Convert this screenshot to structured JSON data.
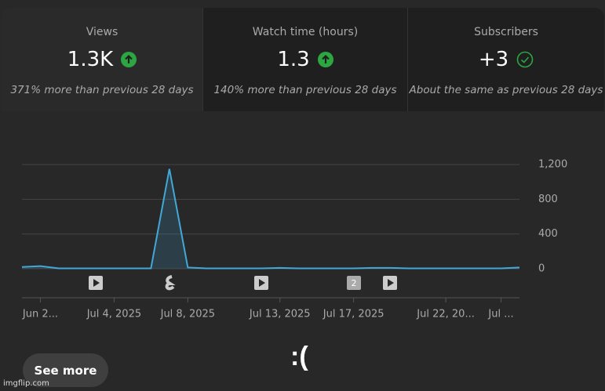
{
  "cards": [
    {
      "title": "Views",
      "value": "1.3K",
      "comparison": "371% more than previous 28 days"
    },
    {
      "title": "Watch time (hours)",
      "value": "1.3",
      "comparison": "140% more than previous 28 days"
    },
    {
      "title": "Subscribers",
      "value": "+3",
      "comparison": "About the same as previous 28 days"
    }
  ],
  "chart_data": {
    "type": "line",
    "categories": [
      null,
      "Jun 2...",
      null,
      null,
      null,
      "Jul 4, 2025",
      null,
      null,
      null,
      "Jul 8, 2025",
      null,
      null,
      null,
      null,
      "Jul 13, 2025",
      null,
      null,
      null,
      "Jul 17, 2025",
      null,
      null,
      null,
      null,
      "Jul 22, 20...",
      null,
      null,
      "Jul ...",
      null
    ],
    "values": [
      20,
      30,
      5,
      5,
      5,
      5,
      5,
      5,
      1150,
      15,
      5,
      5,
      5,
      5,
      10,
      5,
      5,
      5,
      5,
      10,
      10,
      5,
      5,
      5,
      5,
      5,
      5,
      15
    ],
    "color": "#41a8d8",
    "ylim": [
      0,
      1200
    ],
    "yticks": [
      0,
      400,
      800,
      {
        "value": 1200,
        "label": "1,200"
      }
    ],
    "grid": true,
    "marker_badge": "2"
  },
  "button": "See more",
  "caption": ":(",
  "watermark": "imgflip.com"
}
